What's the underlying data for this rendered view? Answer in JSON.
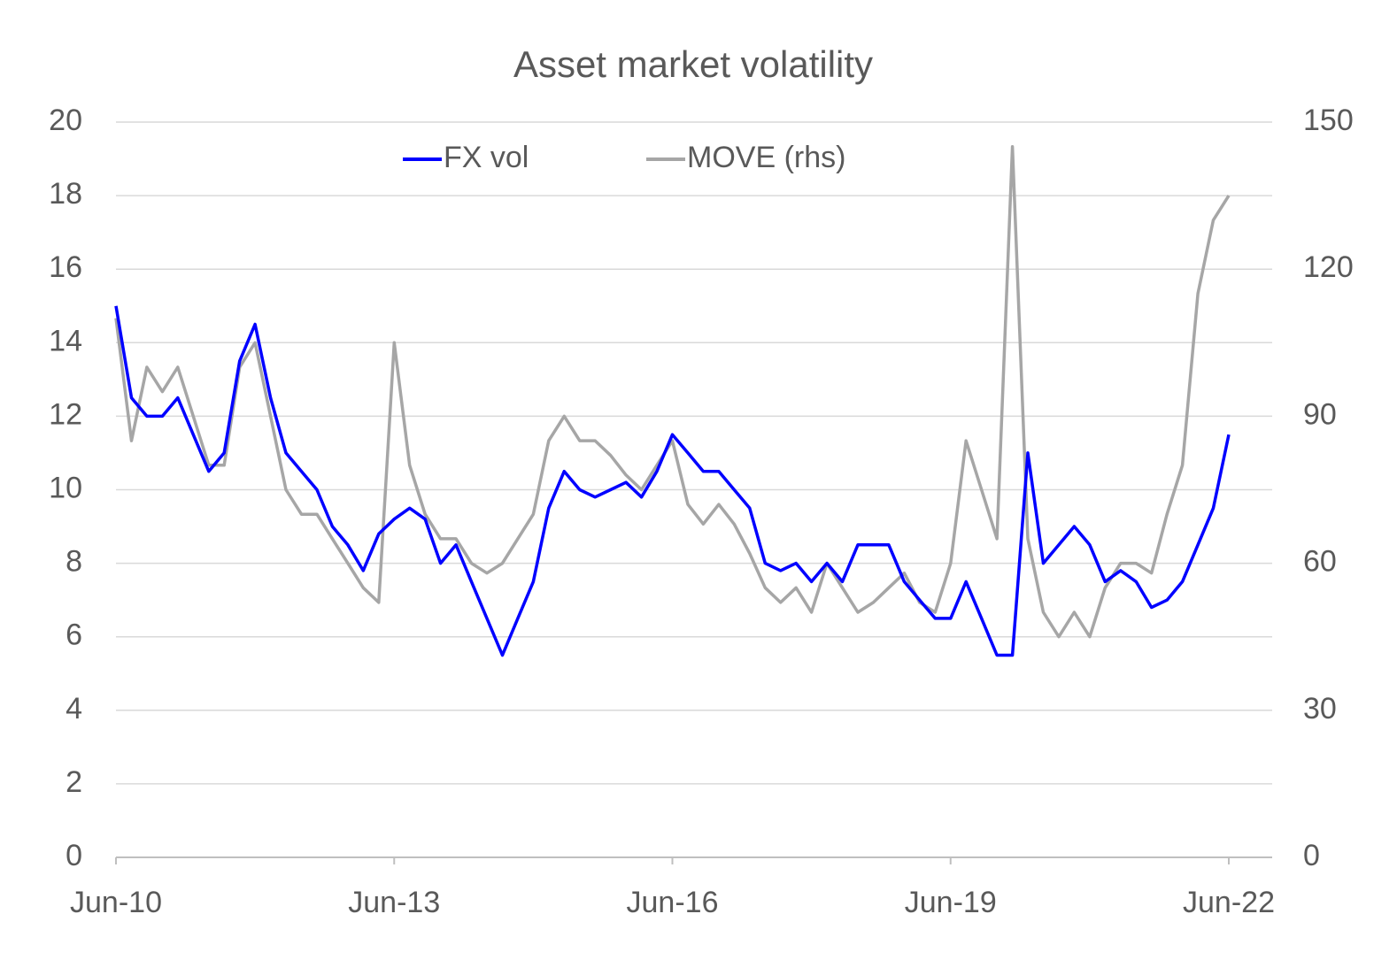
{
  "chart_data": {
    "type": "line",
    "title": "Asset market volatility",
    "categories": [
      "Jun-10",
      null,
      null,
      null,
      null,
      null,
      null,
      null,
      null,
      null,
      null,
      null,
      null,
      null,
      null,
      null,
      null,
      null,
      "Jun-13",
      null,
      null,
      null,
      null,
      null,
      null,
      null,
      null,
      null,
      null,
      null,
      null,
      null,
      null,
      null,
      null,
      null,
      "Jun-16",
      null,
      null,
      null,
      null,
      null,
      null,
      null,
      null,
      null,
      null,
      null,
      null,
      null,
      null,
      null,
      null,
      null,
      "Jun-19",
      null,
      null,
      null,
      null,
      null,
      null,
      null,
      null,
      null,
      null,
      null,
      null,
      null,
      null,
      null,
      null,
      null,
      "Jun-22"
    ],
    "series": [
      {
        "name": "FX vol",
        "color": "#0000ff",
        "values": [
          15,
          12.5,
          12,
          12,
          12.5,
          11.5,
          10.5,
          11,
          13.5,
          14.5,
          12.5,
          11,
          10.5,
          10,
          9,
          8.5,
          7.8,
          8.8,
          9.2,
          9.5,
          9.2,
          8,
          8.5,
          7.5,
          6.5,
          5.5,
          6.5,
          7.5,
          9.5,
          10.5,
          10,
          9.8,
          10,
          10.2,
          9.8,
          10.5,
          11.5,
          11,
          10.5,
          10.5,
          10,
          9.5,
          8,
          7.8,
          8,
          7.5,
          8,
          7.5,
          8.5,
          8.5,
          8.5,
          7.5,
          7,
          6.5,
          6.5,
          7.5,
          6.5,
          5.5,
          5.5,
          11,
          8,
          8.5,
          9,
          8.5,
          7.5,
          7.8,
          7.5,
          6.8,
          7,
          7.5,
          8.5,
          9.5,
          11.5
        ]
      },
      {
        "name": "MOVE (rhs)",
        "color": "#a6a6a6",
        "axis": "y2",
        "values": [
          110,
          85,
          100,
          95,
          100,
          90,
          80,
          80,
          100,
          105,
          90,
          75,
          70,
          70,
          65,
          60,
          55,
          52,
          105,
          80,
          70,
          65,
          65,
          60,
          58,
          60,
          65,
          70,
          85,
          90,
          85,
          85,
          82,
          78,
          75,
          80,
          85,
          72,
          68,
          72,
          68,
          62,
          55,
          52,
          55,
          50,
          60,
          55,
          50,
          52,
          55,
          58,
          52,
          50,
          60,
          85,
          75,
          65,
          145,
          65,
          50,
          45,
          50,
          45,
          55,
          60,
          60,
          58,
          70,
          80,
          115,
          130,
          135
        ]
      }
    ],
    "ylim": [
      0,
      20
    ],
    "yticks": [
      0,
      2,
      4,
      6,
      8,
      10,
      12,
      14,
      16,
      18,
      20
    ],
    "y2lim": [
      0,
      150
    ],
    "y2ticks": [
      0,
      30,
      60,
      90,
      120,
      150
    ],
    "grid": true,
    "legend": "top"
  }
}
